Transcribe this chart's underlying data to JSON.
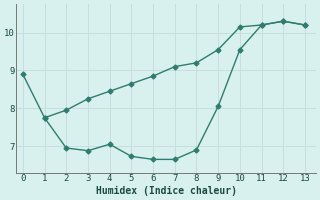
{
  "xlabel": "Humidex (Indice chaleur)",
  "background_color": "#d8f0ee",
  "grid_color": "#c8dede",
  "line_color": "#2e7d6e",
  "series1_x": [
    0,
    1,
    2,
    3,
    4,
    5,
    6,
    7,
    8,
    9,
    10,
    11,
    12,
    13
  ],
  "series1_y": [
    8.9,
    7.75,
    7.95,
    8.25,
    8.45,
    8.65,
    8.85,
    9.1,
    9.2,
    9.55,
    10.15,
    10.2,
    10.3,
    10.2
  ],
  "series2_x": [
    1,
    2,
    3,
    4,
    5,
    6,
    7,
    8,
    9,
    10,
    11,
    12,
    13
  ],
  "series2_y": [
    7.75,
    6.95,
    6.88,
    7.05,
    6.73,
    6.65,
    6.65,
    6.9,
    8.05,
    9.55,
    10.2,
    10.3,
    10.2
  ],
  "xlim": [
    -0.3,
    13.5
  ],
  "ylim": [
    6.3,
    10.75
  ],
  "xticks": [
    0,
    1,
    2,
    3,
    4,
    5,
    6,
    7,
    8,
    9,
    10,
    11,
    12,
    13
  ],
  "yticks": [
    7,
    8,
    9,
    10
  ],
  "markersize": 2.5,
  "linewidth": 1.0
}
